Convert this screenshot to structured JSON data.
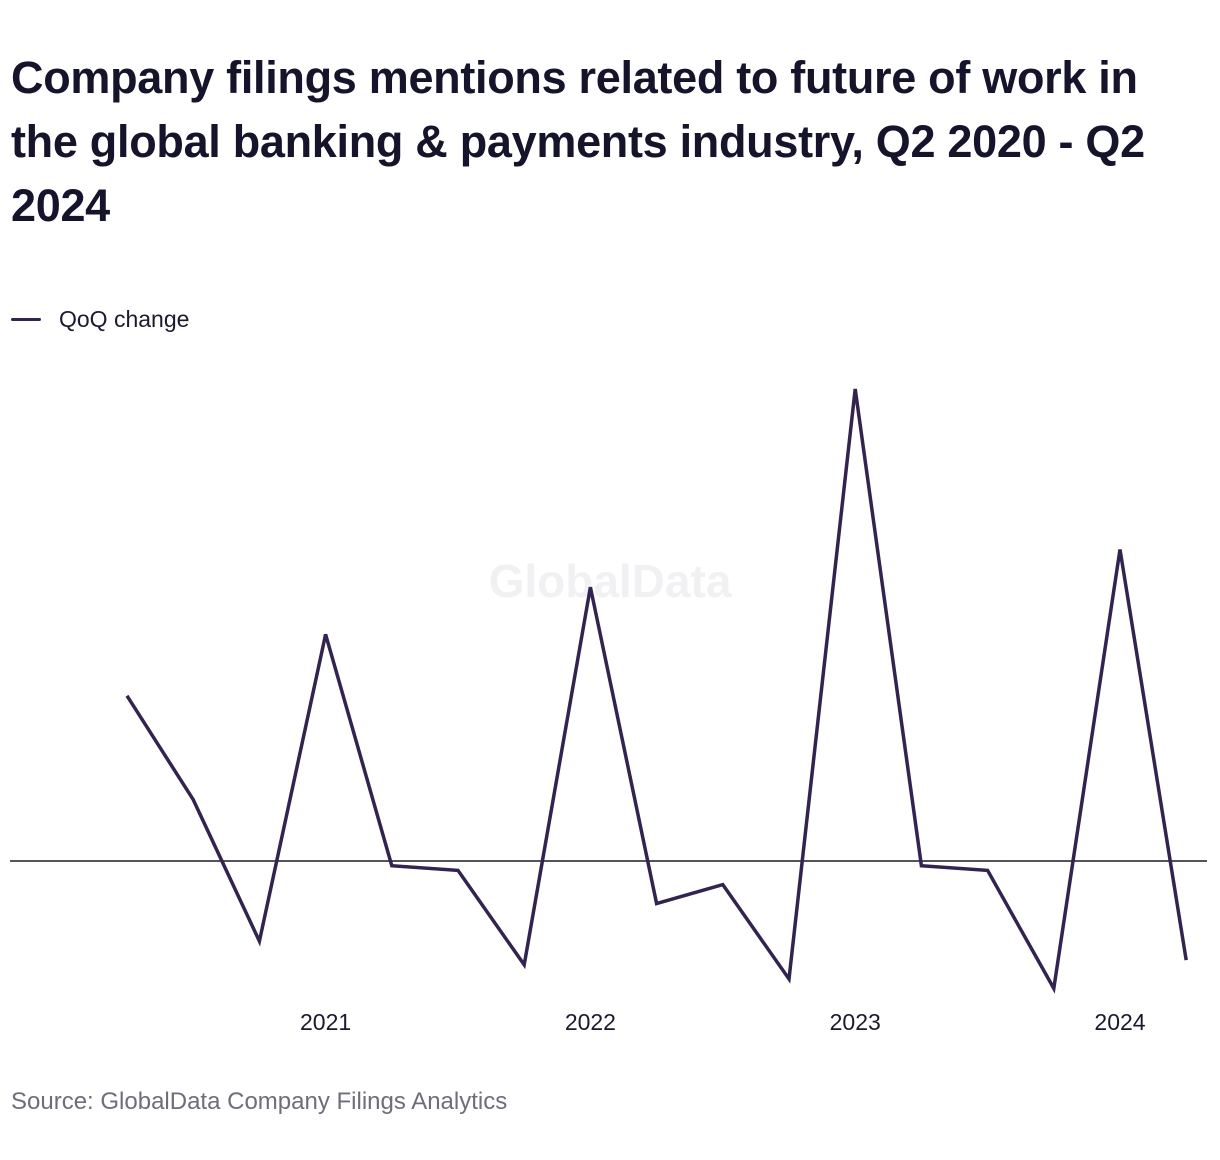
{
  "chart_data": {
    "type": "line",
    "title": "Company filings mentions related to future of work in the global banking & payments industry, Q2 2020 - Q2 2024",
    "xlabel": "",
    "ylabel": "",
    "x": [
      "Q2 2020",
      "Q3 2020",
      "Q4 2020",
      "Q1 2021",
      "Q2 2021",
      "Q3 2021",
      "Q4 2021",
      "Q1 2022",
      "Q2 2022",
      "Q3 2022",
      "Q4 2022",
      "Q1 2023",
      "Q2 2023",
      "Q3 2023",
      "Q4 2023",
      "Q1 2024",
      "Q2 2024"
    ],
    "x_tick_labels": [
      "2021",
      "2022",
      "2023",
      "2024"
    ],
    "x_tick_positions": [
      "Q1 2021",
      "Q1 2022",
      "Q1 2023",
      "Q1 2024"
    ],
    "series": [
      {
        "name": "QoQ change",
        "color": "#33234f",
        "values": [
          0.35,
          0.13,
          -0.17,
          0.48,
          -0.01,
          -0.02,
          -0.22,
          0.58,
          -0.09,
          -0.05,
          -0.25,
          1.0,
          -0.01,
          -0.02,
          -0.27,
          0.66,
          -0.21
        ]
      }
    ],
    "ylim": [
      -0.3,
      1.05
    ],
    "zero_line": true,
    "grid": false,
    "legend_position": "top-left"
  },
  "watermark": "GlobalData",
  "source": "Source: GlobalData Company Filings Analytics",
  "colors": {
    "line": "#33234f",
    "zero_line": "#1b1a2e",
    "title": "#15142a",
    "source": "#6e6e7a"
  }
}
